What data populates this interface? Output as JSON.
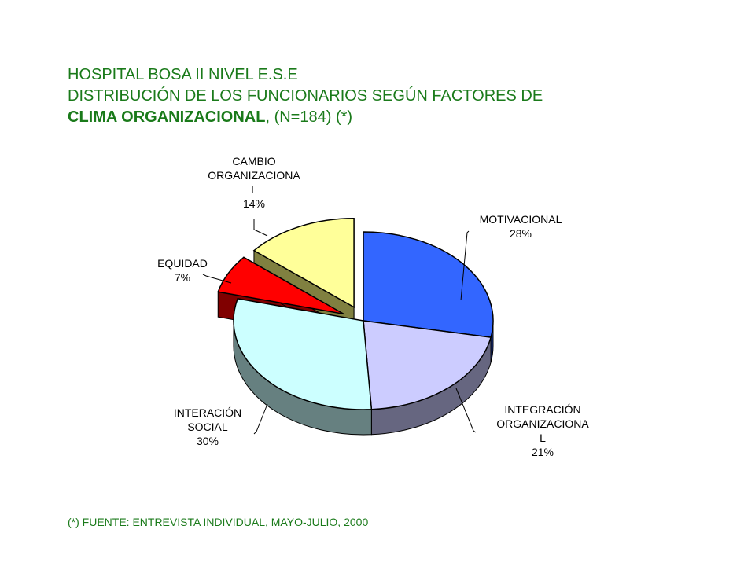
{
  "title": {
    "line1": "HOSPITAL BOSA II NIVEL E.S.E",
    "line2": "DISTRIBUCIÓN DE LOS FUNCIONARIOS SEGÚN FACTORES DE",
    "line3_bold": "CLIMA ORGANIZACIONAL",
    "line3_rest": ",  (N=184) (*)"
  },
  "footnote": "(*) FUENTE: ENTREVISTA INDIVIDUAL, MAYO-JULIO, 2000",
  "chart_data": {
    "type": "pie",
    "slices": [
      {
        "name": "MOTIVACIONAL",
        "label_lines": [
          "MOTIVACIONAL",
          "28%"
        ],
        "value": 28,
        "color": "#3366ff",
        "side_color": "#1f3fa8",
        "exploded": false
      },
      {
        "name": "INTEGRACIÓN ORGANIZACIONAL",
        "label_lines": [
          "INTEGRACIÓN",
          "ORGANIZACIONA",
          "L",
          "21%"
        ],
        "value": 21,
        "color": "#ccccff",
        "side_color": "#666680",
        "exploded": false
      },
      {
        "name": "INTERACIÓN SOCIAL",
        "label_lines": [
          "INTERACIÓN",
          "SOCIAL",
          "30%"
        ],
        "value": 30,
        "color": "#ccffff",
        "side_color": "#668080",
        "exploded": false
      },
      {
        "name": "EQUIDAD",
        "label_lines": [
          "EQUIDAD",
          "7%"
        ],
        "value": 7,
        "color": "#ff0000",
        "side_color": "#800000",
        "exploded": true
      },
      {
        "name": "CAMBIO ORGANIZACIONAL",
        "label_lines": [
          "CAMBIO",
          "ORGANIZACIONA",
          "L",
          "14%"
        ],
        "value": 14,
        "color": "#ffff99",
        "side_color": "#808040",
        "exploded": true
      }
    ]
  }
}
